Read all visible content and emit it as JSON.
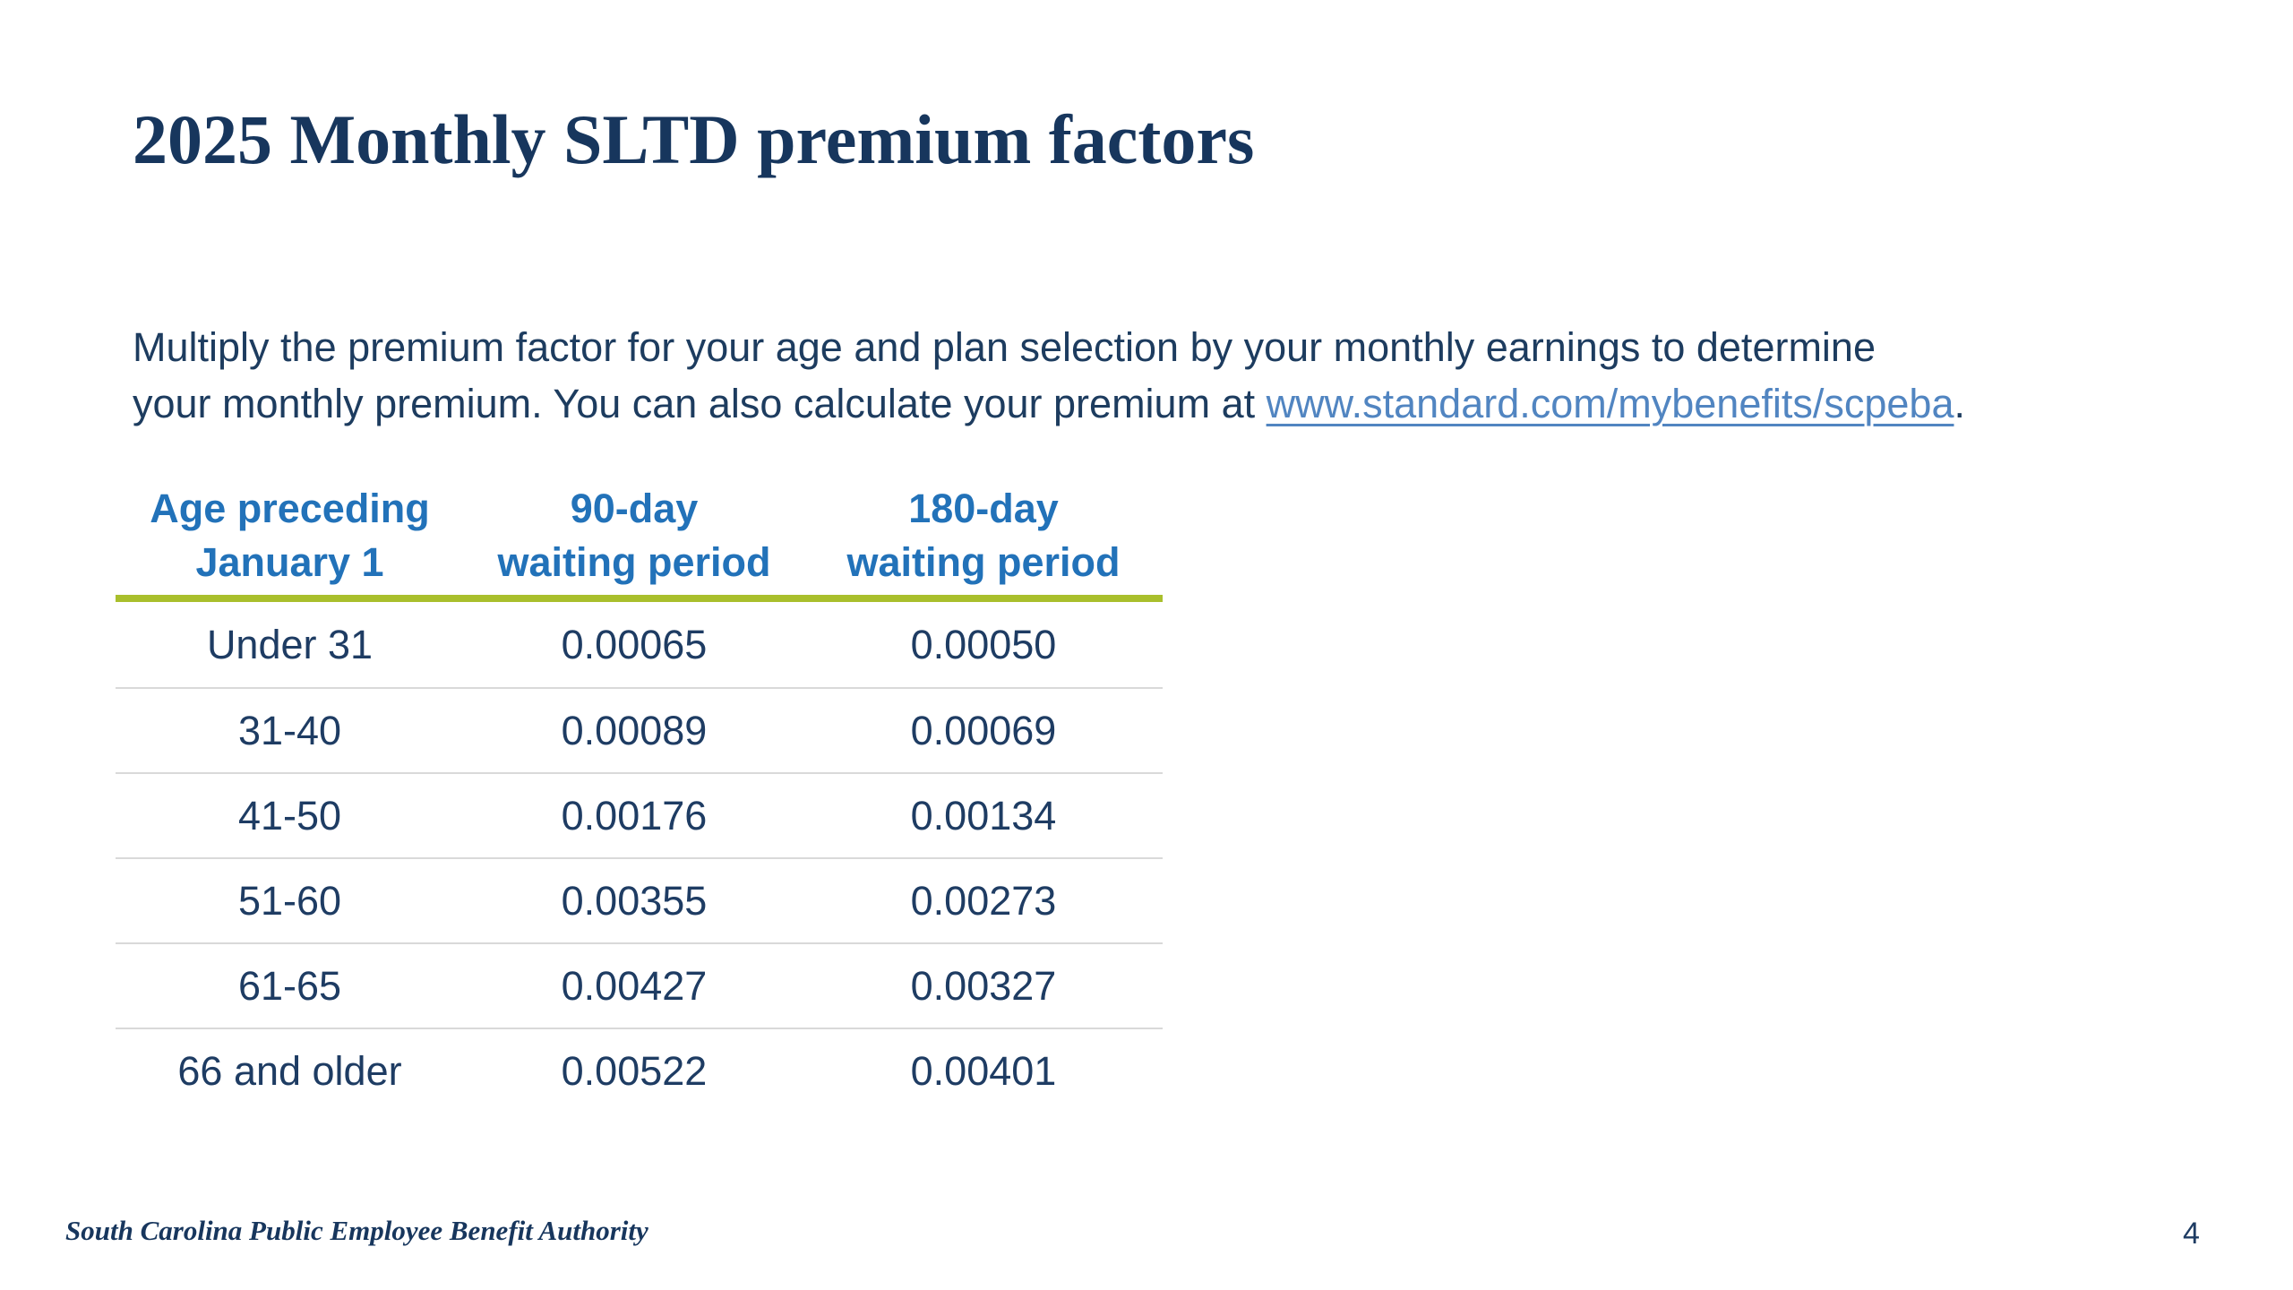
{
  "slide": {
    "title": "2025 Monthly SLTD premium factors",
    "intro": {
      "line1": "Multiply the premium factor for your age and plan selection by your monthly earnings to determine",
      "line2_prefix": "your monthly premium. You can also calculate your premium at ",
      "link_text": "www.standard.com/mybenefits/scpeba",
      "line2_suffix": "."
    },
    "footer": {
      "org": "South Carolina Public Employee Benefit Authority",
      "page_number": "4"
    }
  },
  "table": {
    "headers": [
      {
        "line1": "Age preceding",
        "line2": "January 1"
      },
      {
        "line1": "90-day",
        "line2": "waiting period"
      },
      {
        "line1": "180-day",
        "line2": "waiting period"
      }
    ],
    "rows": [
      {
        "age": "Under 31",
        "d90": "0.00065",
        "d180": "0.00050"
      },
      {
        "age": "31-40",
        "d90": "0.00089",
        "d180": "0.00069"
      },
      {
        "age": "41-50",
        "d90": "0.00176",
        "d180": "0.00134"
      },
      {
        "age": "51-60",
        "d90": "0.00355",
        "d180": "0.00273"
      },
      {
        "age": "61-65",
        "d90": "0.00427",
        "d180": "0.00327"
      },
      {
        "age": "66 and older",
        "d90": "0.00522",
        "d180": "0.00401"
      }
    ]
  },
  "colors": {
    "title_navy": "#17365D",
    "body_navy": "#1D3C5F",
    "table_text_navy": "#1E3C63",
    "header_blue": "#2272B9",
    "accent_green": "#A9BF2C",
    "link_blue": "#5185C1",
    "row_divider_gray": "#D9D9D9",
    "background": "#FFFFFF"
  }
}
